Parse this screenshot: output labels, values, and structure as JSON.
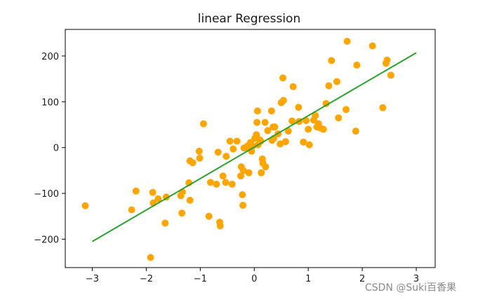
{
  "chart_data": {
    "type": "scatter",
    "title": "linear Regression",
    "xlabel": "",
    "ylabel": "",
    "xlim": [
      -3.5,
      3.35
    ],
    "ylim": [
      -262,
      258
    ],
    "grid": false,
    "legend": "none",
    "x_ticks": [
      -3,
      -2,
      -1,
      0,
      1,
      2,
      3
    ],
    "x_tick_labels": [
      "−3",
      "−2",
      "−1",
      "0",
      "1",
      "2",
      "3"
    ],
    "y_ticks": [
      -200,
      -100,
      0,
      100,
      200
    ],
    "y_tick_labels": [
      "−200",
      "−100",
      "0",
      "100",
      "200"
    ],
    "colors": {
      "points": "#FFA500",
      "line": "#2CA02C",
      "axes": "#000000"
    },
    "series": [
      {
        "kind": "scatter",
        "color": "#FFA500",
        "points": [
          [
            -3.13,
            -127
          ],
          [
            -2.27,
            -136
          ],
          [
            -2.19,
            -95
          ],
          [
            -1.92,
            -240
          ],
          [
            -1.88,
            -98
          ],
          [
            -1.87,
            -121
          ],
          [
            -1.78,
            -112
          ],
          [
            -1.65,
            -165
          ],
          [
            -1.63,
            -108
          ],
          [
            -1.36,
            -105
          ],
          [
            -1.34,
            -143
          ],
          [
            -1.33,
            -97
          ],
          [
            -1.21,
            -77
          ],
          [
            -1.19,
            -115
          ],
          [
            -1.19,
            -29
          ],
          [
            -1.14,
            -33
          ],
          [
            -1.02,
            -8
          ],
          [
            -1.01,
            -23
          ],
          [
            -0.94,
            52
          ],
          [
            -0.84,
            -150
          ],
          [
            -0.81,
            -76
          ],
          [
            -0.7,
            -80
          ],
          [
            -0.67,
            -10
          ],
          [
            -0.64,
            -163
          ],
          [
            -0.63,
            -171
          ],
          [
            -0.58,
            -62
          ],
          [
            -0.53,
            -76
          ],
          [
            -0.52,
            -19
          ],
          [
            -0.45,
            14
          ],
          [
            -0.41,
            -80
          ],
          [
            -0.39,
            -3
          ],
          [
            -0.32,
            14
          ],
          [
            -0.25,
            -62
          ],
          [
            -0.24,
            -42
          ],
          [
            -0.22,
            -103
          ],
          [
            -0.21,
            -126
          ],
          [
            -0.2,
            -50
          ],
          [
            -0.19,
            -1
          ],
          [
            -0.16,
            0
          ],
          [
            -0.12,
            4
          ],
          [
            -0.1,
            -55
          ],
          [
            -0.07,
            11
          ],
          [
            -0.05,
            -8
          ],
          [
            -0.03,
            3
          ],
          [
            0.01,
            20
          ],
          [
            0.04,
            28
          ],
          [
            0.05,
            55
          ],
          [
            0.06,
            80
          ],
          [
            0.07,
            6
          ],
          [
            0.1,
            17
          ],
          [
            0.12,
            14
          ],
          [
            0.13,
            -55
          ],
          [
            0.15,
            -25
          ],
          [
            0.16,
            -34
          ],
          [
            0.2,
            55
          ],
          [
            0.21,
            -42
          ],
          [
            0.25,
            37
          ],
          [
            0.32,
            80
          ],
          [
            0.33,
            16
          ],
          [
            0.35,
            45
          ],
          [
            0.36,
            20
          ],
          [
            0.38,
            45
          ],
          [
            0.44,
            30
          ],
          [
            0.48,
            8
          ],
          [
            0.5,
            98
          ],
          [
            0.53,
            152
          ],
          [
            0.54,
            103
          ],
          [
            0.58,
            13
          ],
          [
            0.63,
            36
          ],
          [
            0.7,
            58
          ],
          [
            0.72,
            133
          ],
          [
            0.82,
            88
          ],
          [
            0.83,
            57
          ],
          [
            0.91,
            12
          ],
          [
            0.96,
            59
          ],
          [
            1.0,
            40
          ],
          [
            1.02,
            6
          ],
          [
            1.1,
            60
          ],
          [
            1.13,
            70
          ],
          [
            1.16,
            45
          ],
          [
            1.19,
            52
          ],
          [
            1.22,
            43
          ],
          [
            1.28,
            40
          ],
          [
            1.33,
            96
          ],
          [
            1.38,
            135
          ],
          [
            1.43,
            190
          ],
          [
            1.53,
            144
          ],
          [
            1.56,
            65
          ],
          [
            1.7,
            83
          ],
          [
            1.72,
            232
          ],
          [
            1.88,
            36
          ],
          [
            1.9,
            180
          ],
          [
            2.19,
            222
          ],
          [
            2.38,
            87
          ],
          [
            2.44,
            184
          ],
          [
            2.46,
            191
          ],
          [
            2.53,
            158
          ]
        ]
      },
      {
        "kind": "line",
        "color": "#2CA02C",
        "points": [
          [
            -3,
            -205
          ],
          [
            3,
            207
          ]
        ]
      }
    ]
  },
  "watermark": "CSDN @Suki百香果"
}
